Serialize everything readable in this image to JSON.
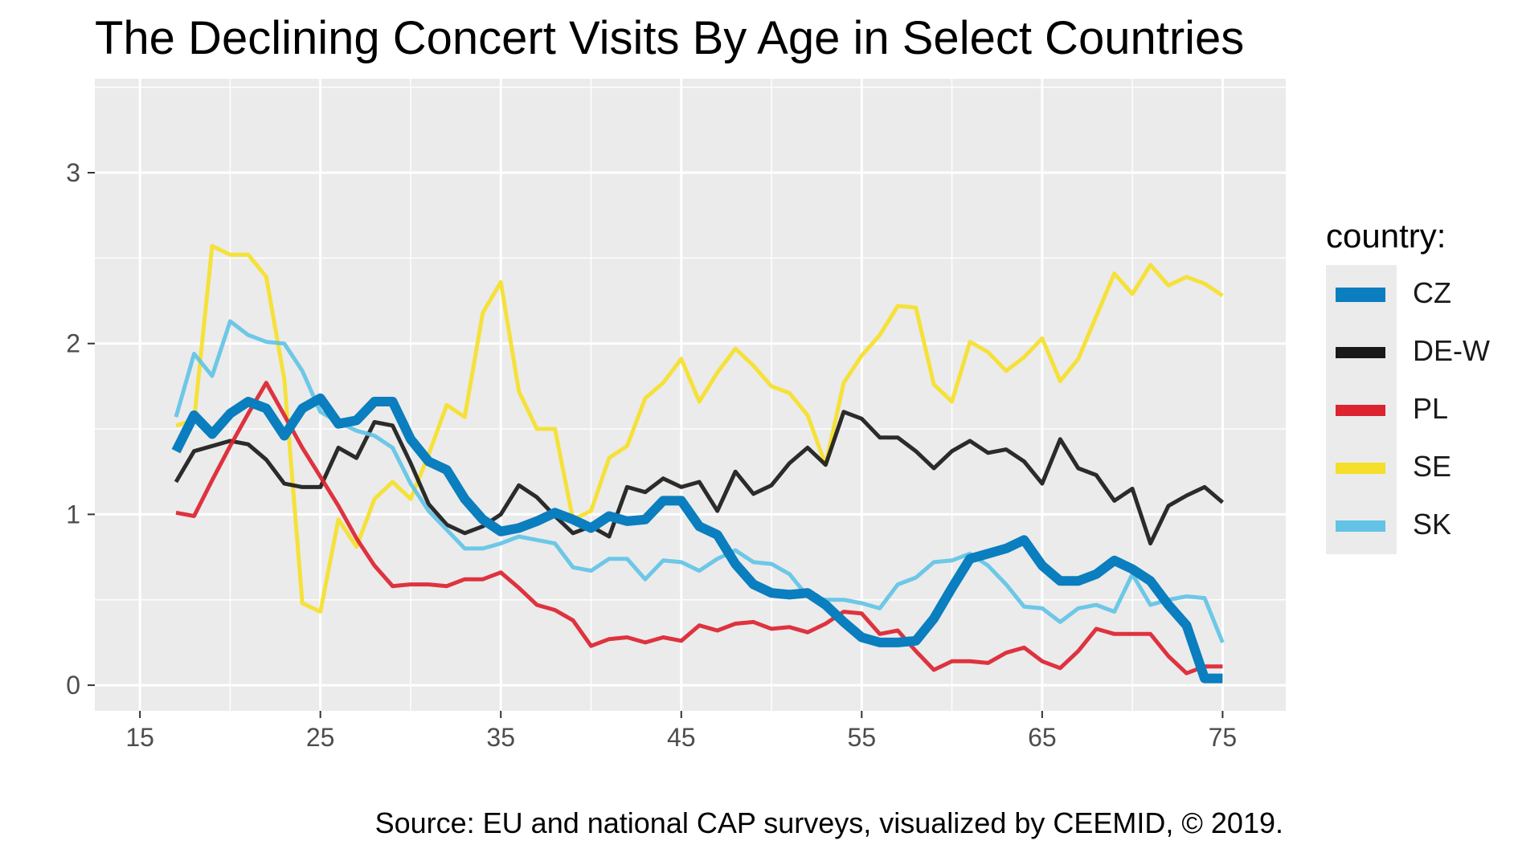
{
  "title": "The Declining Concert Visits By Age in Select Countries",
  "caption": "Source: EU and national CAP surveys, visualized by CEEMID, © 2019.",
  "legend": {
    "title": "country:",
    "position": "right"
  },
  "colors": {
    "panel_background": "#ebebeb",
    "grid": "#ffffff",
    "CZ": "#0a7ebe",
    "DE-W": "#1a1a1a",
    "PL": "#dc2330",
    "SE": "#f5df2a",
    "SK": "#62c3e6"
  },
  "chart_data": {
    "type": "line",
    "title": "The Declining Concert Visits By Age in Select Countries",
    "xlabel": "",
    "ylabel": "",
    "xlim": [
      12.5,
      78.5
    ],
    "ylim": [
      -0.15,
      3.55
    ],
    "x_ticks": [
      15,
      25,
      35,
      45,
      55,
      65,
      75
    ],
    "y_ticks": [
      0,
      1,
      2,
      3
    ],
    "grid": true,
    "legend_placement": "right",
    "x": [
      17,
      18,
      19,
      20,
      21,
      22,
      23,
      24,
      25,
      26,
      27,
      28,
      29,
      30,
      31,
      32,
      33,
      34,
      35,
      36,
      37,
      38,
      39,
      40,
      41,
      42,
      43,
      44,
      45,
      46,
      47,
      48,
      49,
      50,
      51,
      52,
      53,
      54,
      55,
      56,
      57,
      58,
      59,
      60,
      61,
      62,
      63,
      64,
      65,
      66,
      67,
      68,
      69,
      70,
      71,
      72,
      73,
      74,
      75
    ],
    "series": [
      {
        "name": "SE",
        "values": [
          1.52,
          1.55,
          2.57,
          2.52,
          2.52,
          2.39,
          1.79,
          0.48,
          0.43,
          0.97,
          0.81,
          1.09,
          1.19,
          1.09,
          1.35,
          1.64,
          1.57,
          2.18,
          2.36,
          1.72,
          1.5,
          1.5,
          0.97,
          1.02,
          1.33,
          1.4,
          1.68,
          1.77,
          1.91,
          1.66,
          1.83,
          1.97,
          1.87,
          1.75,
          1.71,
          1.58,
          1.29,
          1.77,
          1.93,
          2.05,
          2.22,
          2.21,
          1.76,
          1.66,
          2.01,
          1.95,
          1.84,
          1.92,
          2.03,
          1.78,
          1.91,
          2.16,
          2.41,
          2.29,
          2.46,
          2.34,
          2.39,
          2.35,
          2.28
        ]
      },
      {
        "name": "DE-W",
        "values": [
          1.19,
          1.37,
          1.4,
          1.43,
          1.41,
          1.32,
          1.18,
          1.16,
          1.16,
          1.39,
          1.33,
          1.54,
          1.52,
          1.3,
          1.06,
          0.94,
          0.89,
          0.93,
          1.0,
          1.17,
          1.1,
          0.99,
          0.89,
          0.93,
          0.87,
          1.16,
          1.13,
          1.21,
          1.16,
          1.19,
          1.02,
          1.25,
          1.12,
          1.17,
          1.3,
          1.39,
          1.29,
          1.6,
          1.56,
          1.45,
          1.45,
          1.37,
          1.27,
          1.37,
          1.43,
          1.36,
          1.38,
          1.31,
          1.18,
          1.44,
          1.27,
          1.23,
          1.08,
          1.15,
          0.83,
          1.05,
          1.11,
          1.16,
          1.07
        ]
      },
      {
        "name": "PL",
        "values": [
          1.01,
          0.99,
          1.2,
          1.4,
          1.59,
          1.77,
          1.58,
          1.39,
          1.22,
          1.05,
          0.86,
          0.7,
          0.58,
          0.59,
          0.59,
          0.58,
          0.62,
          0.62,
          0.66,
          0.57,
          0.47,
          0.44,
          0.38,
          0.23,
          0.27,
          0.28,
          0.25,
          0.28,
          0.26,
          0.35,
          0.32,
          0.36,
          0.37,
          0.33,
          0.34,
          0.31,
          0.36,
          0.43,
          0.42,
          0.3,
          0.32,
          0.2,
          0.09,
          0.14,
          0.14,
          0.13,
          0.19,
          0.22,
          0.14,
          0.1,
          0.2,
          0.33,
          0.3,
          0.3,
          0.3,
          0.17,
          0.07,
          0.11,
          0.11
        ]
      },
      {
        "name": "SK",
        "values": [
          1.57,
          1.94,
          1.81,
          2.13,
          2.05,
          2.01,
          2.0,
          1.84,
          1.6,
          1.54,
          1.49,
          1.46,
          1.39,
          1.18,
          1.02,
          0.91,
          0.8,
          0.8,
          0.83,
          0.87,
          0.85,
          0.83,
          0.69,
          0.67,
          0.74,
          0.74,
          0.62,
          0.73,
          0.72,
          0.67,
          0.74,
          0.79,
          0.72,
          0.71,
          0.65,
          0.52,
          0.5,
          0.5,
          0.48,
          0.45,
          0.59,
          0.63,
          0.72,
          0.73,
          0.77,
          0.7,
          0.59,
          0.46,
          0.45,
          0.37,
          0.45,
          0.47,
          0.43,
          0.65,
          0.47,
          0.5,
          0.52,
          0.51,
          0.25
        ]
      },
      {
        "name": "CZ",
        "values": [
          1.37,
          1.58,
          1.47,
          1.59,
          1.66,
          1.62,
          1.46,
          1.62,
          1.68,
          1.53,
          1.55,
          1.66,
          1.66,
          1.44,
          1.31,
          1.26,
          1.09,
          0.97,
          0.9,
          0.92,
          0.96,
          1.01,
          0.97,
          0.92,
          0.99,
          0.96,
          0.97,
          1.08,
          1.08,
          0.93,
          0.88,
          0.71,
          0.59,
          0.54,
          0.53,
          0.54,
          0.47,
          0.37,
          0.28,
          0.25,
          0.25,
          0.26,
          0.39,
          0.57,
          0.74,
          0.77,
          0.8,
          0.85,
          0.7,
          0.61,
          0.61,
          0.65,
          0.73,
          0.68,
          0.61,
          0.47,
          0.35,
          0.04,
          0.04
        ]
      }
    ]
  }
}
